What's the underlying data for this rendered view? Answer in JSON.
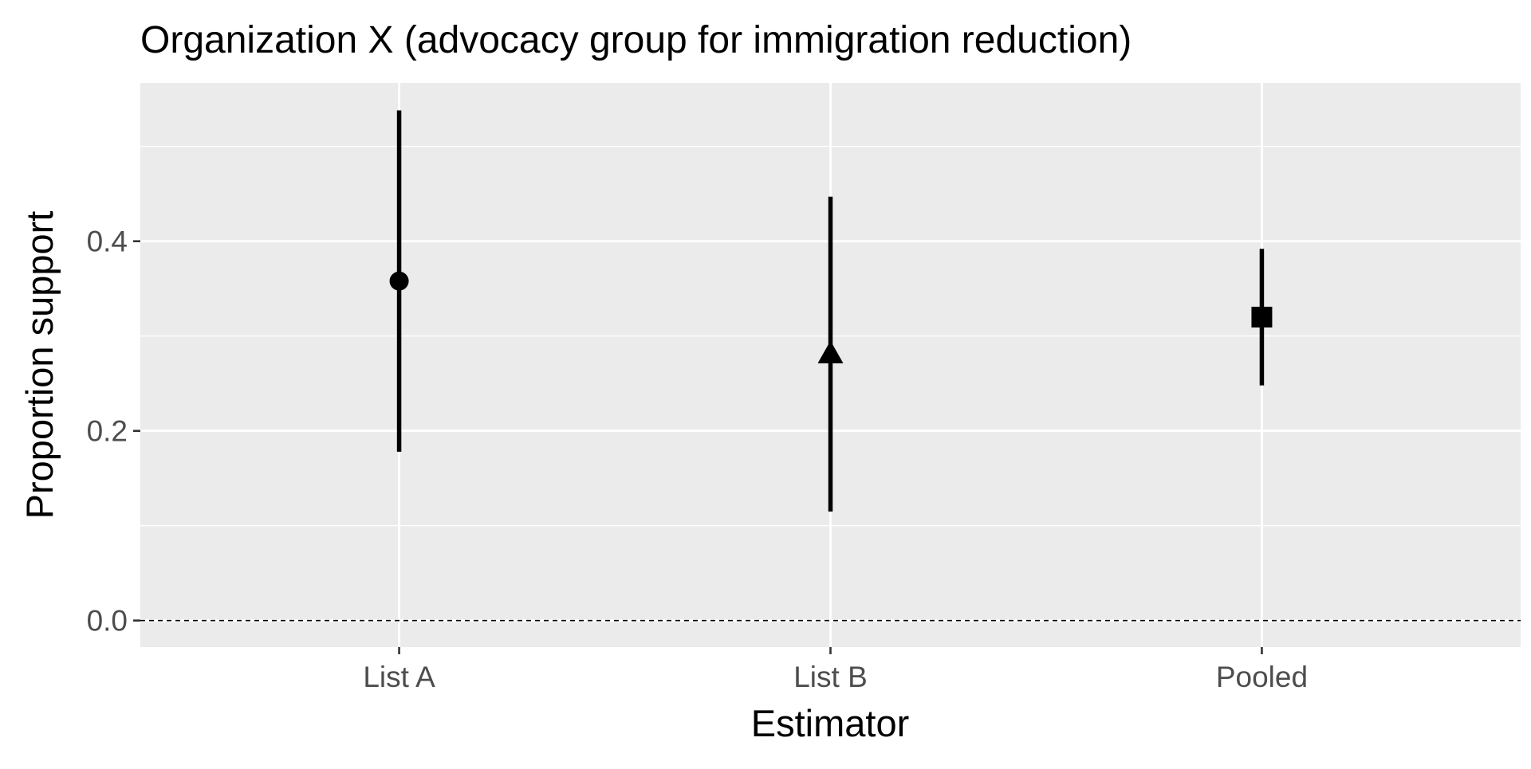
{
  "chart_data": {
    "type": "scatter",
    "title": "Organization X (advocacy group for immigration reduction)",
    "xlabel": "Estimator",
    "ylabel": "Proportion support",
    "categories": [
      "List A",
      "List B",
      "Pooled"
    ],
    "points": [
      {
        "category": "List A",
        "estimate": 0.358,
        "lower": 0.178,
        "upper": 0.538,
        "shape": "circle"
      },
      {
        "category": "List B",
        "estimate": 0.281,
        "lower": 0.115,
        "upper": 0.447,
        "shape": "triangle"
      },
      {
        "category": "Pooled",
        "estimate": 0.32,
        "lower": 0.248,
        "upper": 0.392,
        "shape": "square"
      }
    ],
    "y_ticks": [
      0.0,
      0.2,
      0.4
    ],
    "y_tick_labels": [
      "0.0",
      "0.2",
      "0.4"
    ],
    "ylim": [
      -0.028,
      0.567
    ],
    "reference_line": {
      "y": 0.0,
      "style": "dashed"
    },
    "grid": true,
    "legend": "none",
    "colors": {
      "panel_background": "#ebebeb",
      "grid": "#ffffff",
      "mark": "#000000",
      "tick_text": "#4d4d4d",
      "tick_mark": "#333333"
    }
  }
}
